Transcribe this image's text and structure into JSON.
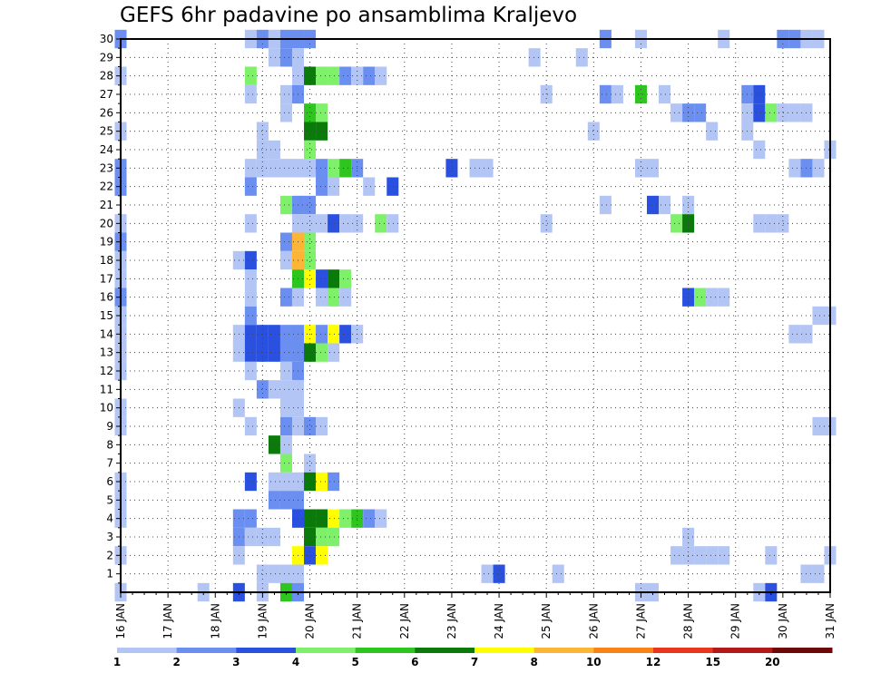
{
  "chart_data": {
    "type": "heatmap",
    "title": "GEFS 6hr padavine po ansamblima Kraljevo",
    "xlabel": "",
    "ylabel": "",
    "x_ticks": [
      "16 JAN",
      "17 JAN",
      "18 JAN",
      "19 JAN",
      "20 JAN",
      "21 JAN",
      "22 JAN",
      "23 JAN",
      "24 JAN",
      "25 JAN",
      "26 JAN",
      "27 JAN",
      "28 JAN",
      "29 JAN",
      "30 JAN",
      "31 JAN"
    ],
    "x_range": [
      "16 JAN 00",
      "31 JAN 00"
    ],
    "x_step_hours": 6,
    "y_ticks": [
      1,
      2,
      3,
      4,
      5,
      6,
      7,
      8,
      9,
      10,
      11,
      12,
      13,
      14,
      15,
      16,
      17,
      18,
      19,
      20,
      21,
      22,
      23,
      24,
      25,
      26,
      27,
      28,
      29,
      30
    ],
    "y_range": [
      0,
      30
    ],
    "grid": "dotted",
    "legend": {
      "placement": "bottom",
      "boundaries": [
        "1",
        "2",
        "3",
        "4",
        "5",
        "6",
        "7",
        "8",
        "10",
        "12",
        "15",
        "20"
      ],
      "colors": [
        "#b3c5f4",
        "#6b8ff0",
        "#2a50e0",
        "#7ef06a",
        "#2ec51e",
        "#0a7a0a",
        "#ffff00",
        "#fcb535",
        "#f78419",
        "#e8371a",
        "#b01a1a",
        "#6e0808"
      ]
    },
    "cells": [
      [
        16.0,
        30,
        2
      ],
      [
        16.0,
        28,
        1
      ],
      [
        16.0,
        25,
        1
      ],
      [
        16.0,
        23,
        2
      ],
      [
        16.0,
        22,
        2
      ],
      [
        16.0,
        20,
        1
      ],
      [
        16.0,
        19,
        2
      ],
      [
        16.0,
        18,
        1
      ],
      [
        16.0,
        17,
        1
      ],
      [
        16.0,
        16,
        2
      ],
      [
        16.0,
        15,
        1
      ],
      [
        16.0,
        14,
        1
      ],
      [
        16.0,
        13,
        1
      ],
      [
        16.0,
        12,
        1
      ],
      [
        16.0,
        10,
        1
      ],
      [
        16.0,
        9,
        1
      ],
      [
        16.0,
        6,
        1
      ],
      [
        16.0,
        5,
        1
      ],
      [
        16.0,
        4,
        1
      ],
      [
        16.0,
        2,
        1
      ],
      [
        16.0,
        0,
        1
      ],
      [
        17.75,
        0,
        1
      ],
      [
        18.5,
        0,
        3
      ],
      [
        18.5,
        4,
        2
      ],
      [
        18.5,
        3,
        2
      ],
      [
        18.5,
        2,
        1
      ],
      [
        18.5,
        10,
        1
      ],
      [
        18.5,
        13,
        1
      ],
      [
        18.5,
        14,
        1
      ],
      [
        18.5,
        18,
        1
      ],
      [
        18.75,
        30,
        1
      ],
      [
        18.75,
        28,
        4
      ],
      [
        18.75,
        27,
        1
      ],
      [
        18.75,
        23,
        1
      ],
      [
        18.75,
        22,
        2
      ],
      [
        18.75,
        20,
        1
      ],
      [
        18.75,
        18,
        3
      ],
      [
        18.75,
        17,
        1
      ],
      [
        18.75,
        16,
        1
      ],
      [
        18.75,
        15,
        2
      ],
      [
        18.75,
        14,
        3
      ],
      [
        18.75,
        13,
        3
      ],
      [
        18.75,
        12,
        1
      ],
      [
        18.75,
        9,
        1
      ],
      [
        18.75,
        6,
        3
      ],
      [
        18.75,
        4,
        2
      ],
      [
        18.75,
        3,
        1
      ],
      [
        19.0,
        30,
        2
      ],
      [
        19.0,
        25,
        1
      ],
      [
        19.0,
        24,
        1
      ],
      [
        19.0,
        23,
        1
      ],
      [
        19.0,
        14,
        3
      ],
      [
        19.0,
        13,
        3
      ],
      [
        19.0,
        11,
        2
      ],
      [
        19.0,
        3,
        1
      ],
      [
        19.0,
        1,
        1
      ],
      [
        19.0,
        0,
        1
      ],
      [
        19.25,
        30,
        1
      ],
      [
        19.25,
        29,
        1
      ],
      [
        19.25,
        24,
        1
      ],
      [
        19.25,
        23,
        1
      ],
      [
        19.25,
        14,
        3
      ],
      [
        19.25,
        13,
        3
      ],
      [
        19.25,
        11,
        1
      ],
      [
        19.25,
        8,
        6
      ],
      [
        19.25,
        6,
        1
      ],
      [
        19.25,
        5,
        2
      ],
      [
        19.25,
        3,
        1
      ],
      [
        19.25,
        1,
        1
      ],
      [
        19.5,
        30,
        2
      ],
      [
        19.5,
        29,
        2
      ],
      [
        19.5,
        27,
        1
      ],
      [
        19.5,
        26,
        1
      ],
      [
        19.5,
        23,
        1
      ],
      [
        19.5,
        21,
        4
      ],
      [
        19.5,
        19,
        2
      ],
      [
        19.5,
        18,
        1
      ],
      [
        19.5,
        16,
        2
      ],
      [
        19.5,
        14,
        2
      ],
      [
        19.5,
        13,
        2
      ],
      [
        19.5,
        12,
        1
      ],
      [
        19.5,
        11,
        1
      ],
      [
        19.5,
        10,
        1
      ],
      [
        19.5,
        9,
        2
      ],
      [
        19.5,
        8,
        1
      ],
      [
        19.5,
        7,
        4
      ],
      [
        19.5,
        6,
        1
      ],
      [
        19.5,
        5,
        2
      ],
      [
        19.5,
        1,
        1
      ],
      [
        19.5,
        0,
        5
      ],
      [
        19.75,
        30,
        2
      ],
      [
        19.75,
        29,
        1
      ],
      [
        19.75,
        28,
        1
      ],
      [
        19.75,
        27,
        2
      ],
      [
        19.75,
        23,
        1
      ],
      [
        19.75,
        21,
        2
      ],
      [
        19.75,
        20,
        1
      ],
      [
        19.75,
        19,
        8
      ],
      [
        19.75,
        18,
        8
      ],
      [
        19.75,
        17,
        5
      ],
      [
        19.75,
        16,
        1
      ],
      [
        19.75,
        14,
        2
      ],
      [
        19.75,
        13,
        2
      ],
      [
        19.75,
        12,
        2
      ],
      [
        19.75,
        11,
        1
      ],
      [
        19.75,
        10,
        1
      ],
      [
        19.75,
        9,
        1
      ],
      [
        19.75,
        6,
        1
      ],
      [
        19.75,
        5,
        2
      ],
      [
        19.75,
        4,
        3
      ],
      [
        19.75,
        2,
        7
      ],
      [
        19.75,
        1,
        1
      ],
      [
        19.75,
        0,
        2
      ],
      [
        20.0,
        30,
        2
      ],
      [
        20.0,
        28,
        6
      ],
      [
        20.0,
        26,
        5
      ],
      [
        20.0,
        25,
        6
      ],
      [
        20.0,
        24,
        4
      ],
      [
        20.0,
        23,
        1
      ],
      [
        20.0,
        21,
        2
      ],
      [
        20.0,
        20,
        1
      ],
      [
        20.0,
        19,
        4
      ],
      [
        20.0,
        18,
        4
      ],
      [
        20.0,
        17,
        7
      ],
      [
        20.0,
        14,
        7
      ],
      [
        20.0,
        13,
        6
      ],
      [
        20.0,
        9,
        2
      ],
      [
        20.0,
        7,
        1
      ],
      [
        20.0,
        6,
        6
      ],
      [
        20.0,
        4,
        6
      ],
      [
        20.0,
        3,
        6
      ],
      [
        20.0,
        2,
        3
      ],
      [
        20.25,
        28,
        4
      ],
      [
        20.25,
        26,
        4
      ],
      [
        20.25,
        25,
        6
      ],
      [
        20.25,
        23,
        2
      ],
      [
        20.25,
        22,
        2
      ],
      [
        20.25,
        20,
        1
      ],
      [
        20.25,
        17,
        3
      ],
      [
        20.25,
        16,
        1
      ],
      [
        20.25,
        14,
        2
      ],
      [
        20.25,
        13,
        4
      ],
      [
        20.25,
        9,
        1
      ],
      [
        20.25,
        6,
        7
      ],
      [
        20.25,
        4,
        6
      ],
      [
        20.25,
        3,
        4
      ],
      [
        20.25,
        2,
        7
      ],
      [
        20.5,
        28,
        4
      ],
      [
        20.5,
        23,
        4
      ],
      [
        20.5,
        22,
        1
      ],
      [
        20.5,
        20,
        3
      ],
      [
        20.5,
        17,
        6
      ],
      [
        20.5,
        16,
        4
      ],
      [
        20.5,
        14,
        7
      ],
      [
        20.5,
        13,
        1
      ],
      [
        20.5,
        6,
        2
      ],
      [
        20.5,
        4,
        7
      ],
      [
        20.5,
        3,
        4
      ],
      [
        20.75,
        28,
        2
      ],
      [
        20.75,
        23,
        5
      ],
      [
        20.75,
        20,
        1
      ],
      [
        20.75,
        17,
        4
      ],
      [
        20.75,
        16,
        1
      ],
      [
        20.75,
        14,
        3
      ],
      [
        20.75,
        4,
        4
      ],
      [
        21.0,
        28,
        1
      ],
      [
        21.0,
        23,
        2
      ],
      [
        21.0,
        20,
        1
      ],
      [
        21.0,
        14,
        1
      ],
      [
        21.0,
        4,
        5
      ],
      [
        21.25,
        28,
        2
      ],
      [
        21.25,
        22,
        1
      ],
      [
        21.25,
        4,
        2
      ],
      [
        21.5,
        28,
        1
      ],
      [
        21.5,
        20,
        4
      ],
      [
        21.5,
        4,
        1
      ],
      [
        21.75,
        22,
        3
      ],
      [
        21.75,
        20,
        1
      ],
      [
        23.0,
        23,
        3
      ],
      [
        23.5,
        23,
        1
      ],
      [
        23.75,
        23,
        1
      ],
      [
        23.75,
        1,
        1
      ],
      [
        24.0,
        1,
        3
      ],
      [
        24.75,
        29,
        1
      ],
      [
        25.0,
        27,
        1
      ],
      [
        25.0,
        20,
        1
      ],
      [
        25.25,
        1,
        1
      ],
      [
        25.75,
        29,
        1
      ],
      [
        26.0,
        25,
        1
      ],
      [
        26.25,
        30,
        2
      ],
      [
        26.25,
        27,
        2
      ],
      [
        26.25,
        21,
        1
      ],
      [
        26.5,
        27,
        1
      ],
      [
        27.0,
        30,
        1
      ],
      [
        27.0,
        27,
        5
      ],
      [
        27.0,
        23,
        1
      ],
      [
        27.0,
        0,
        1
      ],
      [
        27.25,
        23,
        1
      ],
      [
        27.25,
        21,
        3
      ],
      [
        27.25,
        0,
        1
      ],
      [
        27.5,
        27,
        1
      ],
      [
        27.5,
        21,
        1
      ],
      [
        27.75,
        26,
        1
      ],
      [
        27.75,
        20,
        4
      ],
      [
        27.75,
        2,
        1
      ],
      [
        28.0,
        26,
        2
      ],
      [
        28.0,
        21,
        1
      ],
      [
        28.0,
        20,
        6
      ],
      [
        28.0,
        16,
        3
      ],
      [
        28.0,
        3,
        1
      ],
      [
        28.0,
        2,
        1
      ],
      [
        28.25,
        26,
        2
      ],
      [
        28.25,
        16,
        4
      ],
      [
        28.25,
        2,
        1
      ],
      [
        28.5,
        25,
        1
      ],
      [
        28.5,
        16,
        1
      ],
      [
        28.5,
        2,
        1
      ],
      [
        28.75,
        30,
        1
      ],
      [
        28.75,
        16,
        1
      ],
      [
        28.75,
        2,
        1
      ],
      [
        29.25,
        27,
        2
      ],
      [
        29.25,
        26,
        1
      ],
      [
        29.25,
        25,
        1
      ],
      [
        29.5,
        27,
        3
      ],
      [
        29.5,
        26,
        3
      ],
      [
        29.5,
        24,
        1
      ],
      [
        29.5,
        20,
        1
      ],
      [
        29.5,
        0,
        1
      ],
      [
        29.75,
        26,
        4
      ],
      [
        29.75,
        20,
        1
      ],
      [
        29.75,
        2,
        1
      ],
      [
        29.75,
        0,
        3
      ],
      [
        30.0,
        30,
        2
      ],
      [
        30.0,
        26,
        1
      ],
      [
        30.0,
        20,
        1
      ],
      [
        30.25,
        30,
        2
      ],
      [
        30.25,
        26,
        1
      ],
      [
        30.25,
        23,
        1
      ],
      [
        30.25,
        14,
        1
      ],
      [
        30.5,
        30,
        1
      ],
      [
        30.5,
        26,
        1
      ],
      [
        30.5,
        23,
        2
      ],
      [
        30.5,
        14,
        1
      ],
      [
        30.5,
        1,
        1
      ],
      [
        30.75,
        30,
        1
      ],
      [
        30.75,
        23,
        1
      ],
      [
        30.75,
        1,
        1
      ],
      [
        31.0,
        24,
        1
      ],
      [
        31.0,
        15,
        1
      ],
      [
        31.0,
        9,
        1
      ],
      [
        31.0,
        2,
        1
      ],
      [
        30.75,
        9,
        1
      ],
      [
        30.75,
        15,
        1
      ]
    ]
  }
}
